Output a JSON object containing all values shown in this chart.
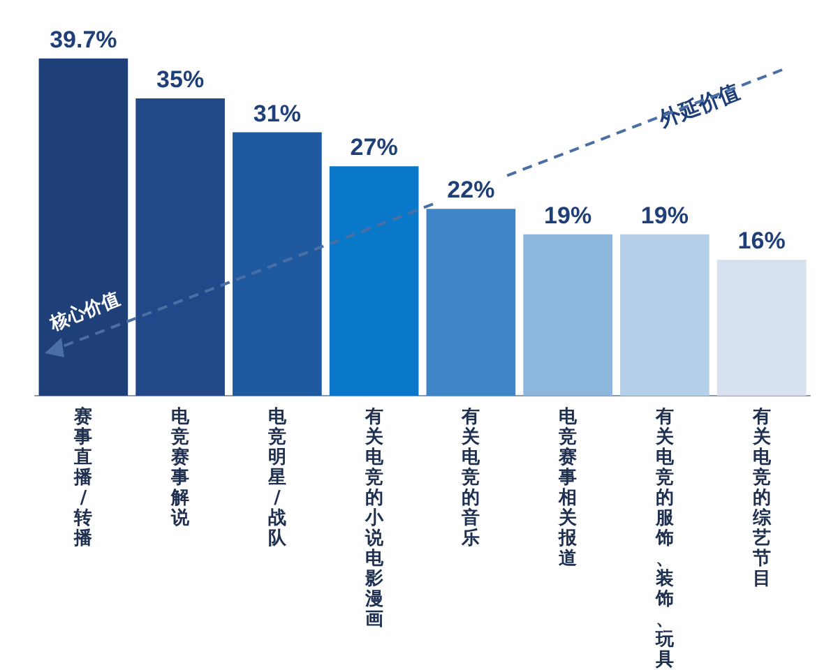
{
  "chart_data": {
    "type": "bar",
    "categories": [
      "赛事直播/转播",
      "电竞赛事解说",
      "电竞明星/战队",
      "有关电竞的小说电影漫画",
      "有关电竞的音乐",
      "电竞赛事相关报道",
      "有关电竞的服饰、装饰、玩具",
      "有关电竞的综艺节目"
    ],
    "values": [
      39.7,
      35,
      31,
      27,
      22,
      19,
      19,
      16
    ],
    "value_labels": [
      "39.7%",
      "35%",
      "31%",
      "27%",
      "22%",
      "19%",
      "19%",
      "16%"
    ],
    "colors": [
      "#1f3f78",
      "#22488a",
      "#1f5aa0",
      "#0a78c8",
      "#3f86c8",
      "#8db6dc",
      "#b5cfe8",
      "#d6e0ef"
    ],
    "annotations": [
      "核心价值",
      "外延价值"
    ]
  }
}
